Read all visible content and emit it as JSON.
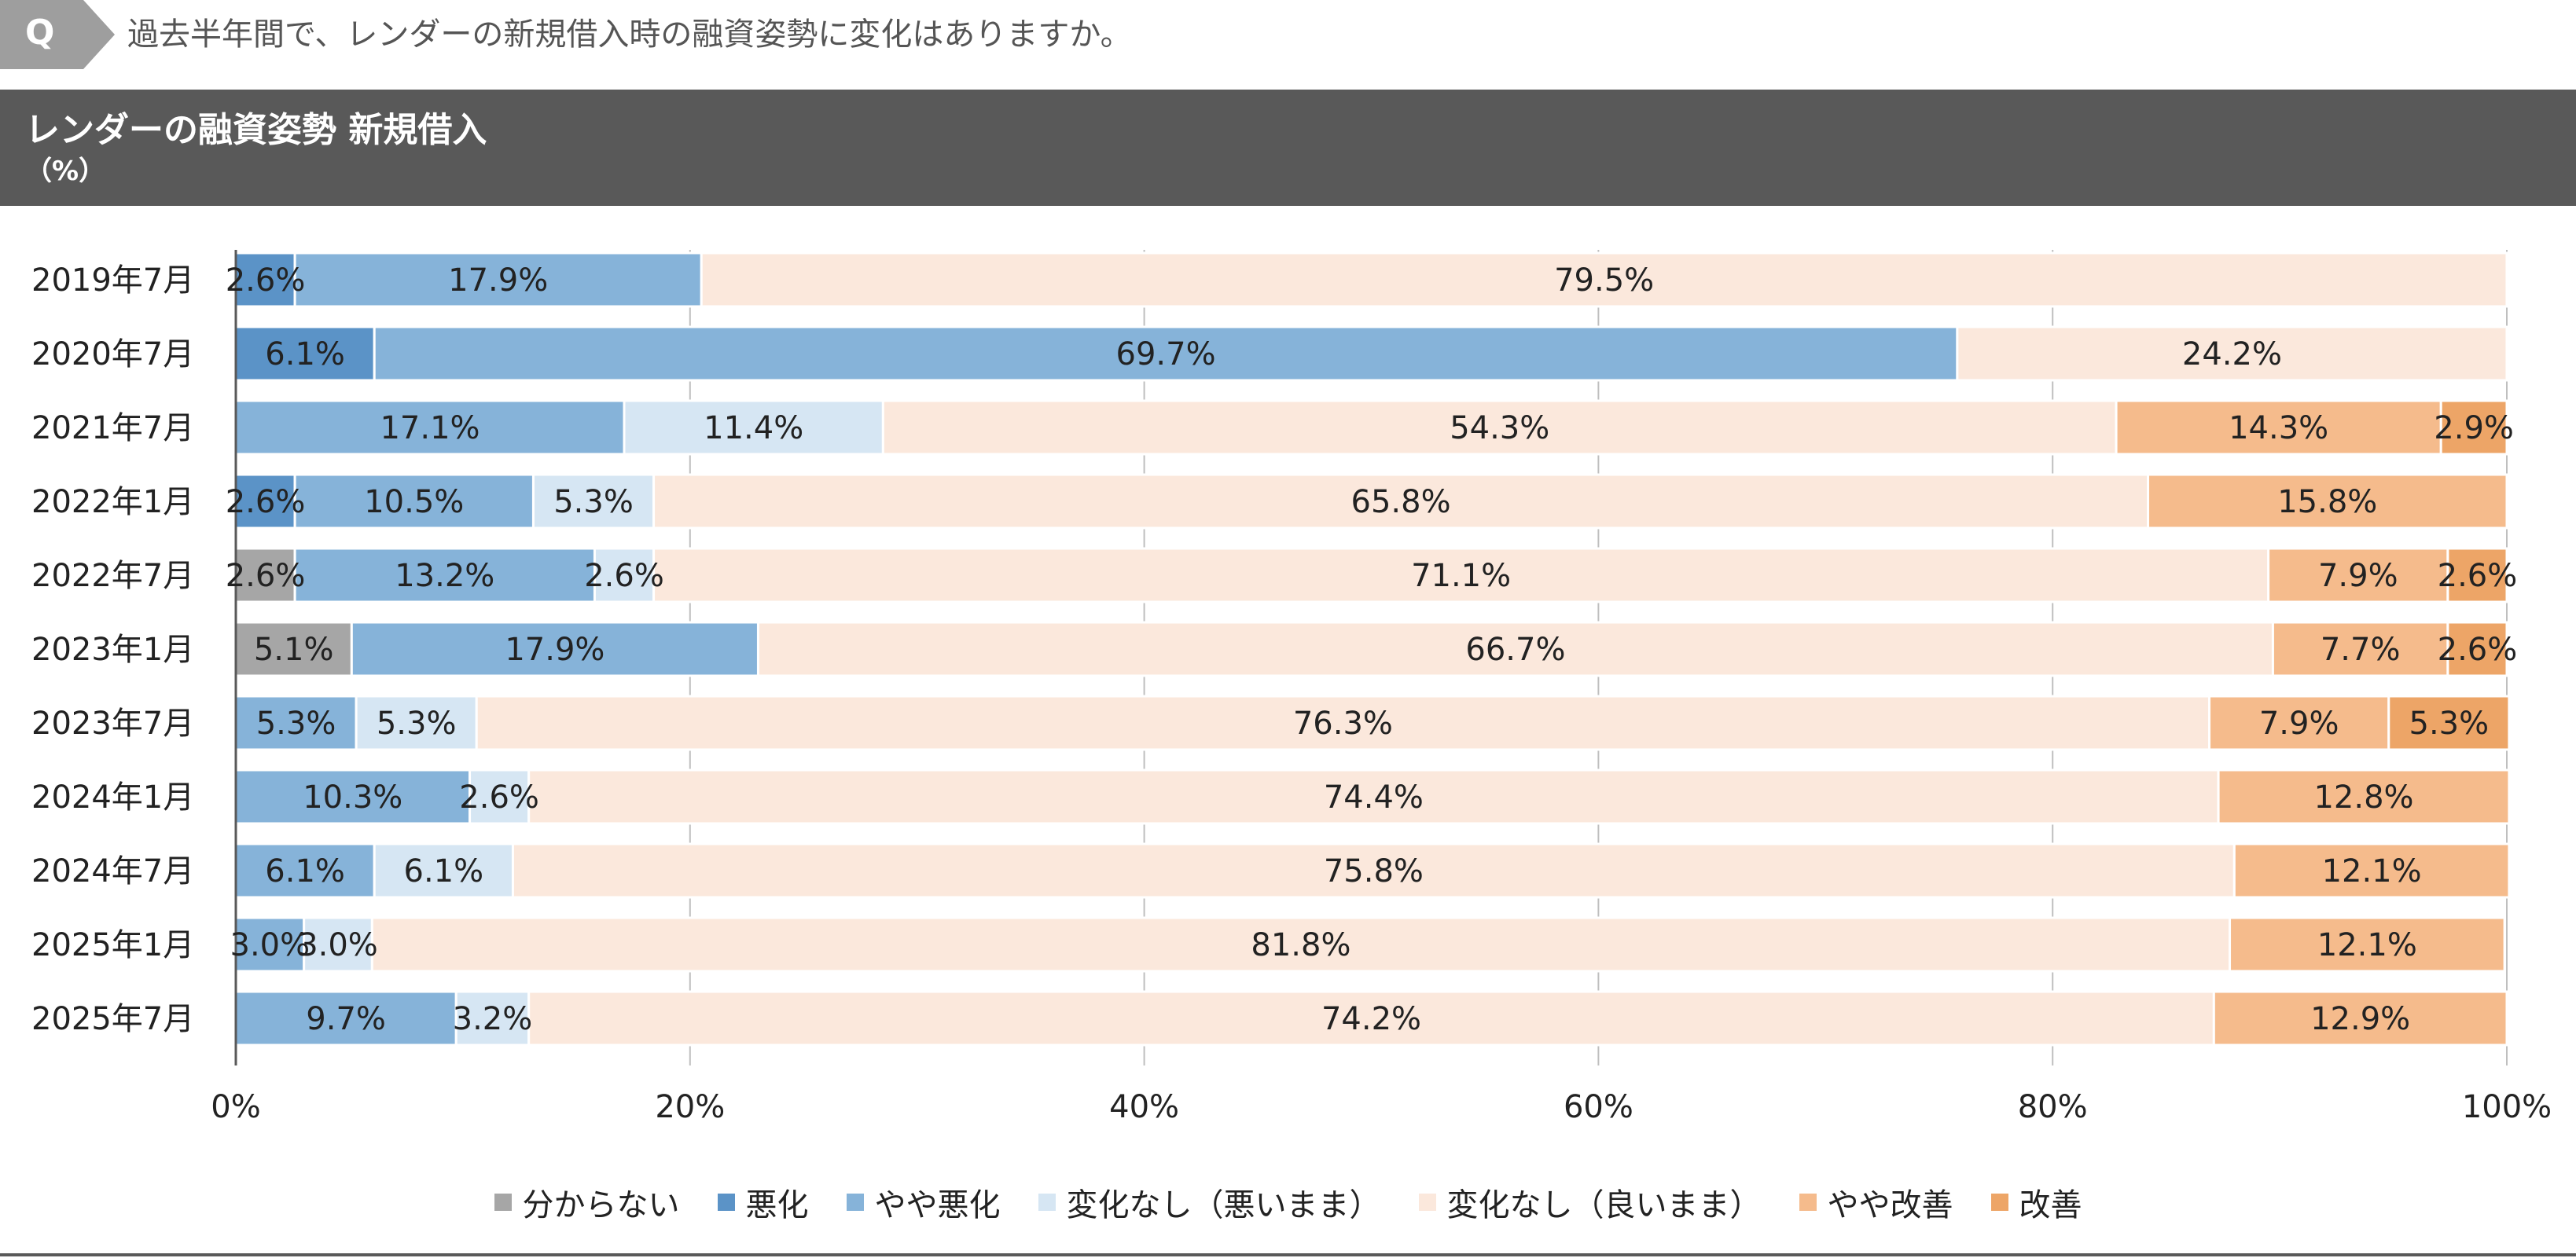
{
  "question": {
    "badge": "Q",
    "text": "過去半年間で、レンダーの新規借入時の融資姿勢に変化はありますか。"
  },
  "header": {
    "title": "レンダーの融資姿勢 新規借入",
    "unit": "（%）"
  },
  "chart_data": {
    "type": "bar",
    "orientation": "horizontal",
    "stacked": true,
    "xlim": [
      0,
      100
    ],
    "x_ticks": [
      "0%",
      "20%",
      "40%",
      "60%",
      "80%",
      "100%"
    ],
    "grid": true,
    "legend_position": "bottom",
    "categories": [
      "2019年7月",
      "2020年7月",
      "2021年7月",
      "2022年1月",
      "2022年7月",
      "2023年1月",
      "2023年7月",
      "2024年1月",
      "2024年7月",
      "2025年1月",
      "2025年7月"
    ],
    "series": [
      {
        "name": "分からない",
        "color": "#a6a6a6",
        "values": [
          0,
          0,
          0,
          0,
          2.6,
          5.1,
          0,
          0,
          0,
          0,
          0
        ]
      },
      {
        "name": "悪化",
        "color": "#5b93c7",
        "values": [
          2.6,
          6.1,
          0,
          2.6,
          0,
          0,
          0,
          0,
          0,
          0,
          0
        ]
      },
      {
        "name": "やや悪化",
        "color": "#86b3d9",
        "values": [
          17.9,
          69.7,
          17.1,
          10.5,
          13.2,
          17.9,
          5.3,
          10.3,
          6.1,
          3.0,
          9.7
        ]
      },
      {
        "name": "変化なし（悪いまま）",
        "color": "#d6e6f3",
        "values": [
          0,
          0,
          11.4,
          5.3,
          2.6,
          0,
          5.3,
          2.6,
          6.1,
          3.0,
          3.2
        ]
      },
      {
        "name": "変化なし（良いまま）",
        "color": "#fbe8dc",
        "values": [
          79.5,
          24.2,
          54.3,
          65.8,
          71.1,
          66.7,
          76.3,
          74.4,
          75.8,
          81.8,
          74.2
        ]
      },
      {
        "name": "やや改善",
        "color": "#f5bb8c",
        "values": [
          0,
          0,
          14.3,
          15.8,
          7.9,
          7.7,
          7.9,
          12.8,
          12.1,
          12.1,
          12.9
        ]
      },
      {
        "name": "改善",
        "color": "#eda567",
        "values": [
          0,
          0,
          2.9,
          0,
          2.6,
          2.6,
          5.3,
          0,
          0,
          0,
          0
        ]
      }
    ]
  }
}
